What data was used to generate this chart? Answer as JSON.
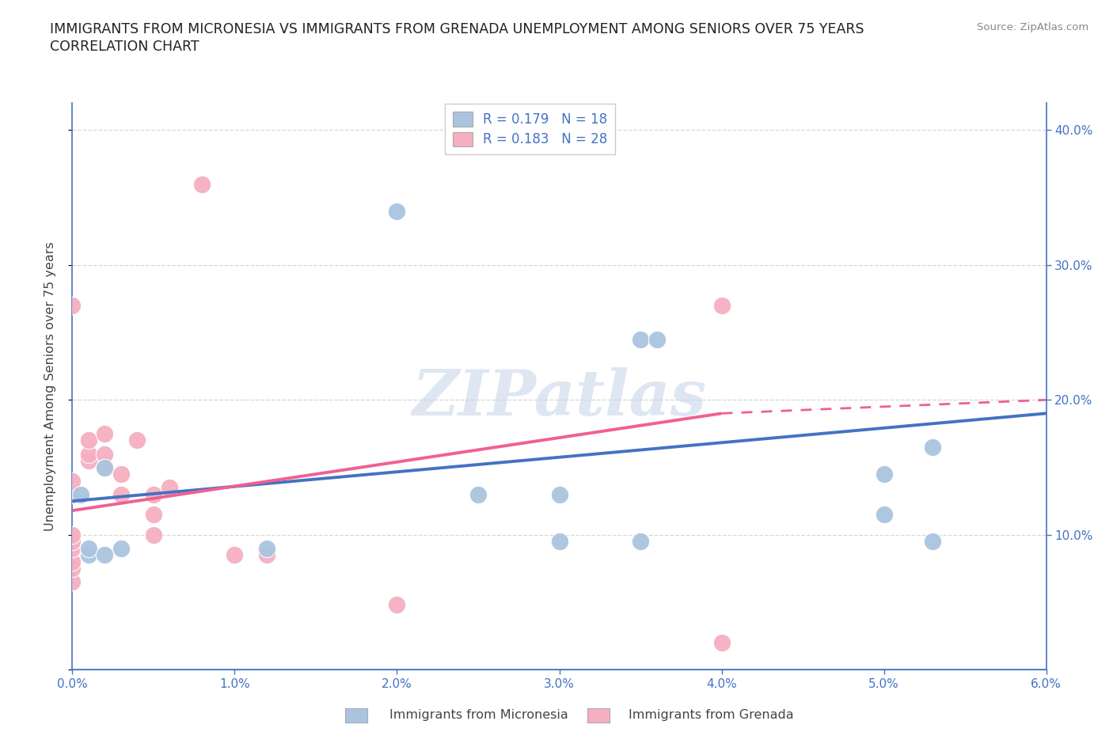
{
  "title_line1": "IMMIGRANTS FROM MICRONESIA VS IMMIGRANTS FROM GRENADA UNEMPLOYMENT AMONG SENIORS OVER 75 YEARS",
  "title_line2": "CORRELATION CHART",
  "source_text": "Source: ZipAtlas.com",
  "ylabel": "Unemployment Among Seniors over 75 years",
  "xlim": [
    0.0,
    0.06
  ],
  "ylim": [
    0.0,
    0.42
  ],
  "xticks": [
    0.0,
    0.01,
    0.02,
    0.03,
    0.04,
    0.05,
    0.06
  ],
  "xticklabels": [
    "0.0%",
    "1.0%",
    "2.0%",
    "3.0%",
    "4.0%",
    "5.0%",
    "6.0%"
  ],
  "yticks_right": [
    0.1,
    0.2,
    0.3,
    0.4
  ],
  "ytick_labels_right": [
    "10.0%",
    "20.0%",
    "30.0%",
    "40.0%"
  ],
  "color_blue": "#aac4e0",
  "color_pink": "#f5afc0",
  "color_blue_line": "#4472c4",
  "color_pink_line": "#f06090",
  "color_text_blue": "#4472c4",
  "R_blue": 0.179,
  "N_blue": 18,
  "R_pink": 0.183,
  "N_pink": 28,
  "micronesia_x": [
    0.0005,
    0.001,
    0.001,
    0.002,
    0.002,
    0.003,
    0.012,
    0.02,
    0.025,
    0.03,
    0.035,
    0.036,
    0.05,
    0.053,
    0.03,
    0.035,
    0.05,
    0.053
  ],
  "micronesia_y": [
    0.13,
    0.085,
    0.09,
    0.085,
    0.15,
    0.09,
    0.09,
    0.34,
    0.13,
    0.13,
    0.245,
    0.245,
    0.145,
    0.165,
    0.095,
    0.095,
    0.115,
    0.095
  ],
  "grenada_x": [
    0.0,
    0.0,
    0.0,
    0.0,
    0.0,
    0.0,
    0.0,
    0.0,
    0.0,
    0.001,
    0.001,
    0.001,
    0.002,
    0.002,
    0.002,
    0.003,
    0.003,
    0.004,
    0.005,
    0.005,
    0.005,
    0.006,
    0.008,
    0.01,
    0.012,
    0.02,
    0.04,
    0.04
  ],
  "grenada_y": [
    0.065,
    0.075,
    0.08,
    0.09,
    0.095,
    0.1,
    0.13,
    0.14,
    0.27,
    0.155,
    0.16,
    0.17,
    0.15,
    0.16,
    0.175,
    0.13,
    0.145,
    0.17,
    0.1,
    0.115,
    0.13,
    0.135,
    0.36,
    0.085,
    0.085,
    0.048,
    0.27,
    0.02
  ],
  "blue_line_x0": 0.0,
  "blue_line_y0": 0.125,
  "blue_line_x1": 0.06,
  "blue_line_y1": 0.19,
  "pink_line_x0": 0.0,
  "pink_line_y0": 0.118,
  "pink_line_x1_solid": 0.04,
  "pink_line_y1_solid": 0.19,
  "pink_line_x1_dash": 0.06,
  "pink_line_y1_dash": 0.2,
  "watermark": "ZIPatlas",
  "grid_color": "#cccccc"
}
